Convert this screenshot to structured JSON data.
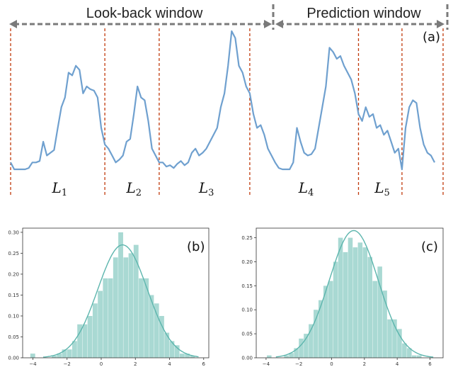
{
  "colors": {
    "series": "#6fa0cf",
    "divider": "#c0390b",
    "arrow": "#7a7a7a",
    "hist": "#a9d9d3",
    "kde": "#5cb5ad",
    "axis": "#333333"
  },
  "headers": {
    "lookback": "Look-back window",
    "prediction": "Prediction window"
  },
  "panel_labels": {
    "a": "(a)",
    "b": "(b)",
    "c": "(c)"
  },
  "segments": [
    {
      "base": "L",
      "sub": "1"
    },
    {
      "base": "L",
      "sub": "2"
    },
    {
      "base": "L",
      "sub": "3"
    },
    {
      "base": "L",
      "sub": "4"
    },
    {
      "base": "L",
      "sub": "5"
    }
  ],
  "chart_data": [
    {
      "type": "line",
      "panel": "(a)",
      "y": [
        0.05,
        0.0,
        0.0,
        0.0,
        0.0,
        0.01,
        0.05,
        0.05,
        0.06,
        0.2,
        0.1,
        0.12,
        0.14,
        0.3,
        0.45,
        0.52,
        0.7,
        0.68,
        0.75,
        0.72,
        0.55,
        0.6,
        0.58,
        0.57,
        0.52,
        0.3,
        0.18,
        0.15,
        0.1,
        0.05,
        0.07,
        0.1,
        0.2,
        0.22,
        0.4,
        0.6,
        0.52,
        0.5,
        0.35,
        0.15,
        0.1,
        0.05,
        0.05,
        0.02,
        0.03,
        0.01,
        0.04,
        0.06,
        0.03,
        0.05,
        0.12,
        0.15,
        0.1,
        0.12,
        0.15,
        0.2,
        0.25,
        0.3,
        0.45,
        0.55,
        0.75,
        1.0,
        0.95,
        0.75,
        0.7,
        0.6,
        0.55,
        0.4,
        0.3,
        0.32,
        0.25,
        0.15,
        0.1,
        0.05,
        0.01,
        0.0,
        0.0,
        0.0,
        0.05,
        0.3,
        0.2,
        0.12,
        0.1,
        0.11,
        0.15,
        0.3,
        0.45,
        0.6,
        0.88,
        0.85,
        0.8,
        0.82,
        0.75,
        0.7,
        0.65,
        0.55,
        0.4,
        0.35,
        0.45,
        0.38,
        0.4,
        0.3,
        0.32,
        0.25,
        0.28,
        0.2,
        0.12,
        0.15,
        0.0,
        0.3,
        0.45,
        0.5,
        0.48,
        0.3,
        0.18,
        0.12,
        0.1,
        0.05
      ],
      "dividers": [
        0,
        26,
        41,
        66,
        96,
        108
      ]
    },
    {
      "type": "bar",
      "panel": "(b)",
      "x": [
        -3.05,
        -2.75,
        -2.45,
        -2.15,
        -1.85,
        -1.55,
        -1.25,
        -0.95,
        -0.65,
        -0.35,
        -0.05,
        0.25,
        0.55,
        0.85,
        1.15,
        1.45,
        1.75,
        2.05,
        2.35,
        2.65,
        2.95,
        3.25,
        3.55,
        3.85,
        4.15,
        4.45,
        4.75,
        5.05,
        5.35
      ],
      "values": [
        0.0,
        0.005,
        0.01,
        0.02,
        0.02,
        0.04,
        0.08,
        0.08,
        0.1,
        0.13,
        0.16,
        0.19,
        0.19,
        0.24,
        0.3,
        0.24,
        0.25,
        0.27,
        0.19,
        0.19,
        0.15,
        0.13,
        0.1,
        0.06,
        0.04,
        0.03,
        0.01,
        0.01,
        0.005
      ],
      "extra_bars": [
        {
          "x": -4.0,
          "value": 0.01
        }
      ],
      "xlim": [
        -4.6,
        6.3
      ],
      "ylim": [
        0,
        0.31
      ],
      "xticks": [
        -4,
        -2,
        0,
        2,
        4,
        6
      ],
      "yticks": [
        0.0,
        0.05,
        0.1,
        0.15,
        0.2,
        0.25,
        0.3
      ],
      "kde_mean": 1.25,
      "kde_sd": 1.45,
      "kde_peak": 0.27
    },
    {
      "type": "bar",
      "panel": "(c)",
      "x": [
        -3.05,
        -2.75,
        -2.45,
        -2.15,
        -1.85,
        -1.55,
        -1.25,
        -0.95,
        -0.65,
        -0.35,
        -0.05,
        0.25,
        0.55,
        0.85,
        1.15,
        1.45,
        1.75,
        2.05,
        2.35,
        2.65,
        2.95,
        3.25,
        3.55,
        3.85,
        4.15,
        4.45,
        4.75,
        5.05,
        5.35
      ],
      "values": [
        0.0,
        0.005,
        0.01,
        0.02,
        0.04,
        0.05,
        0.07,
        0.1,
        0.12,
        0.15,
        0.16,
        0.2,
        0.25,
        0.22,
        0.25,
        0.23,
        0.24,
        0.23,
        0.21,
        0.16,
        0.19,
        0.14,
        0.08,
        0.08,
        0.06,
        0.03,
        0.02,
        0.005,
        0.005
      ],
      "extra_bars": [
        {
          "x": -3.8,
          "value": 0.005
        }
      ],
      "xlim": [
        -4.6,
        6.8
      ],
      "ylim": [
        0,
        0.27
      ],
      "xticks": [
        -4,
        -2,
        0,
        2,
        4,
        6
      ],
      "yticks": [
        0.0,
        0.05,
        0.1,
        0.15,
        0.2,
        0.25
      ],
      "kde_mean": 1.35,
      "kde_sd": 1.5,
      "kde_peak": 0.265
    }
  ]
}
